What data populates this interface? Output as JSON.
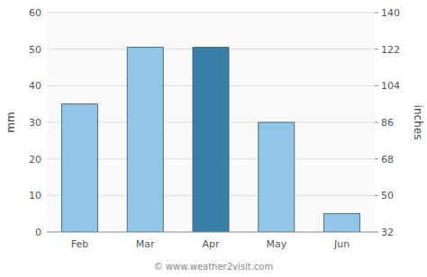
{
  "chart_data": {
    "type": "bar",
    "categories": [
      "Feb",
      "Mar",
      "Apr",
      "May",
      "Jun"
    ],
    "values": [
      35,
      50.5,
      50.5,
      30,
      5
    ],
    "colors": [
      "#92c5e8",
      "#92c5e8",
      "#3a7fa8",
      "#92c5e8",
      "#92c5e8"
    ],
    "ylabel": "mm",
    "y2label": "inches",
    "ylim": [
      0,
      60
    ],
    "yticks": [
      0,
      10,
      20,
      30,
      40,
      50,
      60
    ],
    "y2lim": [
      32,
      140
    ],
    "y2ticks": [
      32,
      50,
      68,
      86,
      104,
      122,
      140
    ],
    "grid": true,
    "annotation": "© www.weather2visit.com"
  }
}
